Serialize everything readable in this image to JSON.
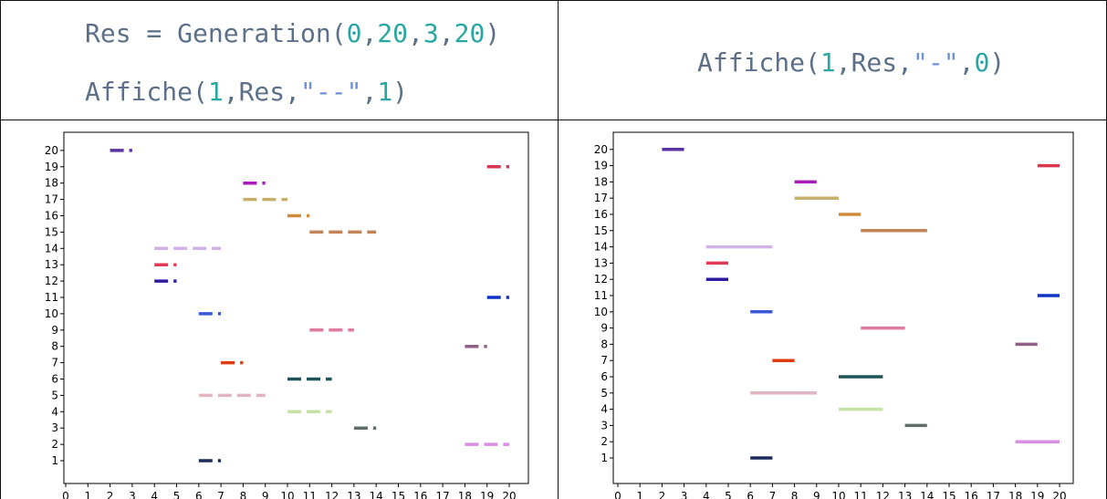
{
  "code": {
    "left_line1": {
      "fn": "Res = Generation(",
      "a": "0",
      "b": "20",
      "c": "3",
      "d": "20",
      "end": ")"
    },
    "left_line2": {
      "fn": "Affiche(",
      "a": "1",
      "mid": ",Res,",
      "s": "\"--\"",
      "b": "1",
      "end": ")"
    },
    "right_line1": {
      "fn": "Affiche(",
      "a": "1",
      "mid": ",Res,",
      "s": "\"-\"",
      "b": "0",
      "end": ")"
    }
  },
  "chart_data": [
    {
      "type": "line",
      "linestyle": "dashed",
      "xlim": [
        0,
        20
      ],
      "ylim": [
        0.5,
        20.5
      ],
      "xticks": [
        "0",
        "1",
        "2",
        "3",
        "4",
        "5",
        "6",
        "7",
        "8",
        "9",
        "10",
        "11",
        "12",
        "13",
        "14",
        "15",
        "16",
        "17",
        "18",
        "19",
        "20"
      ],
      "yticks": [
        "1",
        "2",
        "3",
        "4",
        "5",
        "6",
        "7",
        "8",
        "9",
        "10",
        "11",
        "12",
        "13",
        "14",
        "15",
        "16",
        "17",
        "18",
        "19",
        "20"
      ],
      "segments": [
        {
          "y": 20,
          "x0": 2,
          "x1": 3,
          "color": "#5a32a3"
        },
        {
          "y": 19,
          "x0": 19,
          "x1": 20,
          "color": "#d9364f"
        },
        {
          "y": 18,
          "x0": 8,
          "x1": 9,
          "color": "#a61cb8"
        },
        {
          "y": 17,
          "x0": 8,
          "x1": 10,
          "color": "#c4b06b"
        },
        {
          "y": 16,
          "x0": 10,
          "x1": 11,
          "color": "#d08b3a"
        },
        {
          "y": 15,
          "x0": 11,
          "x1": 14,
          "color": "#c28457"
        },
        {
          "y": 14,
          "x0": 4,
          "x1": 7,
          "color": "#d0b2e8"
        },
        {
          "y": 13,
          "x0": 4,
          "x1": 5,
          "color": "#e23a55"
        },
        {
          "y": 12,
          "x0": 4,
          "x1": 5,
          "color": "#2d1c9e"
        },
        {
          "y": 11,
          "x0": 19,
          "x1": 20,
          "color": "#1033c4"
        },
        {
          "y": 10,
          "x0": 6,
          "x1": 7,
          "color": "#3a59d8"
        },
        {
          "y": 9,
          "x0": 11,
          "x1": 13,
          "color": "#e07aa0"
        },
        {
          "y": 8,
          "x0": 18,
          "x1": 19,
          "color": "#8f5f88"
        },
        {
          "y": 7,
          "x0": 7,
          "x1": 8,
          "color": "#df3b0e"
        },
        {
          "y": 6,
          "x0": 10,
          "x1": 12,
          "color": "#1d5459"
        },
        {
          "y": 5,
          "x0": 6,
          "x1": 9,
          "color": "#e1b4bf"
        },
        {
          "y": 4,
          "x0": 10,
          "x1": 12,
          "color": "#c6e3a4"
        },
        {
          "y": 3,
          "x0": 13,
          "x1": 14,
          "color": "#5f6e6a"
        },
        {
          "y": 2,
          "x0": 18,
          "x1": 20,
          "color": "#dc8ee6"
        },
        {
          "y": 1,
          "x0": 6,
          "x1": 7,
          "color": "#1c2b5a"
        }
      ]
    },
    {
      "type": "line",
      "linestyle": "solid",
      "xlim": [
        0,
        20
      ],
      "ylim": [
        0.5,
        20.5
      ],
      "xticks": [
        "0",
        "1",
        "2",
        "3",
        "4",
        "5",
        "6",
        "7",
        "8",
        "9",
        "10",
        "11",
        "12",
        "13",
        "14",
        "15",
        "16",
        "17",
        "18",
        "19",
        "20"
      ],
      "yticks": [
        "1",
        "2",
        "3",
        "4",
        "5",
        "6",
        "7",
        "8",
        "9",
        "10",
        "11",
        "12",
        "13",
        "14",
        "15",
        "16",
        "17",
        "18",
        "19",
        "20"
      ],
      "segments": [
        {
          "y": 20,
          "x0": 2,
          "x1": 3,
          "color": "#5a32a3"
        },
        {
          "y": 19,
          "x0": 19,
          "x1": 20,
          "color": "#d9364f"
        },
        {
          "y": 18,
          "x0": 8,
          "x1": 9,
          "color": "#a61cb8"
        },
        {
          "y": 17,
          "x0": 8,
          "x1": 10,
          "color": "#c4b06b"
        },
        {
          "y": 16,
          "x0": 10,
          "x1": 11,
          "color": "#d08b3a"
        },
        {
          "y": 15,
          "x0": 11,
          "x1": 14,
          "color": "#c28457"
        },
        {
          "y": 14,
          "x0": 4,
          "x1": 7,
          "color": "#d0b2e8"
        },
        {
          "y": 13,
          "x0": 4,
          "x1": 5,
          "color": "#e23a55"
        },
        {
          "y": 12,
          "x0": 4,
          "x1": 5,
          "color": "#2d1c9e"
        },
        {
          "y": 11,
          "x0": 19,
          "x1": 20,
          "color": "#1033c4"
        },
        {
          "y": 10,
          "x0": 6,
          "x1": 7,
          "color": "#3a59d8"
        },
        {
          "y": 9,
          "x0": 11,
          "x1": 13,
          "color": "#e07aa0"
        },
        {
          "y": 8,
          "x0": 18,
          "x1": 19,
          "color": "#8f5f88"
        },
        {
          "y": 7,
          "x0": 7,
          "x1": 8,
          "color": "#df3b0e"
        },
        {
          "y": 6,
          "x0": 10,
          "x1": 12,
          "color": "#1d5459"
        },
        {
          "y": 5,
          "x0": 6,
          "x1": 9,
          "color": "#e1b4bf"
        },
        {
          "y": 4,
          "x0": 10,
          "x1": 12,
          "color": "#c6e3a4"
        },
        {
          "y": 3,
          "x0": 13,
          "x1": 14,
          "color": "#5f6e6a"
        },
        {
          "y": 2,
          "x0": 18,
          "x1": 20,
          "color": "#dc8ee6"
        },
        {
          "y": 1,
          "x0": 6,
          "x1": 7,
          "color": "#1c2b5a"
        }
      ]
    }
  ]
}
